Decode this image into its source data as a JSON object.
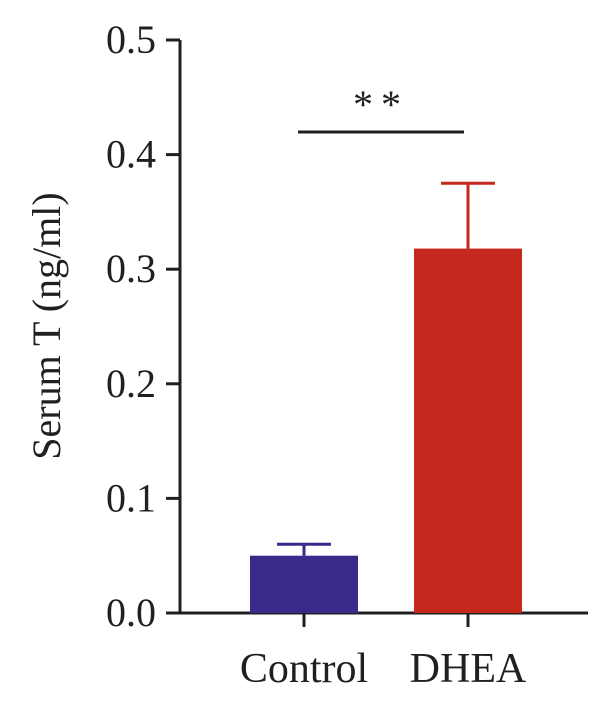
{
  "chart_data": {
    "type": "bar",
    "categories": [
      "Control",
      "DHEA"
    ],
    "values": [
      0.05,
      0.318
    ],
    "errors": [
      0.01,
      0.057
    ],
    "colors": [
      "#3a2a8a",
      "#c5281c"
    ],
    "ylabel": "Serum T (ng/ml)",
    "ylim": [
      0,
      0.5
    ],
    "yticks": [
      "0.0",
      "0.1",
      "0.2",
      "0.3",
      "0.4",
      "0.5"
    ],
    "significance": {
      "label": "**",
      "between": [
        "Control",
        "DHEA"
      ]
    },
    "grid": false
  }
}
